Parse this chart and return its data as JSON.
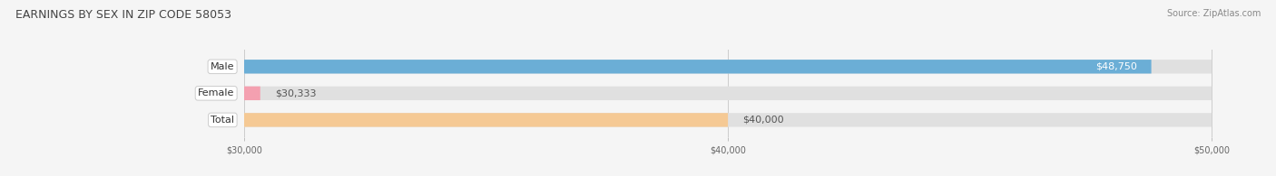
{
  "title": "EARNINGS BY SEX IN ZIP CODE 58053",
  "source": "Source: ZipAtlas.com",
  "categories": [
    "Male",
    "Female",
    "Total"
  ],
  "values": [
    48750,
    30333,
    40000
  ],
  "bar_colors": [
    "#6baed6",
    "#f4a0b0",
    "#f5c994"
  ],
  "label_inside": [
    true,
    false,
    false
  ],
  "value_labels": [
    "$48,750",
    "$30,333",
    "$40,000"
  ],
  "xmin": 30000,
  "xmax": 50000,
  "xticks": [
    30000,
    40000,
    50000
  ],
  "xtick_labels": [
    "$30,000",
    "$40,000",
    "$50,000"
  ],
  "bg_color": "#f5f5f5",
  "bar_bg_color": "#e0e0e0",
  "bar_height": 0.52,
  "title_fontsize": 9,
  "value_fontsize": 8,
  "category_fontsize": 8
}
